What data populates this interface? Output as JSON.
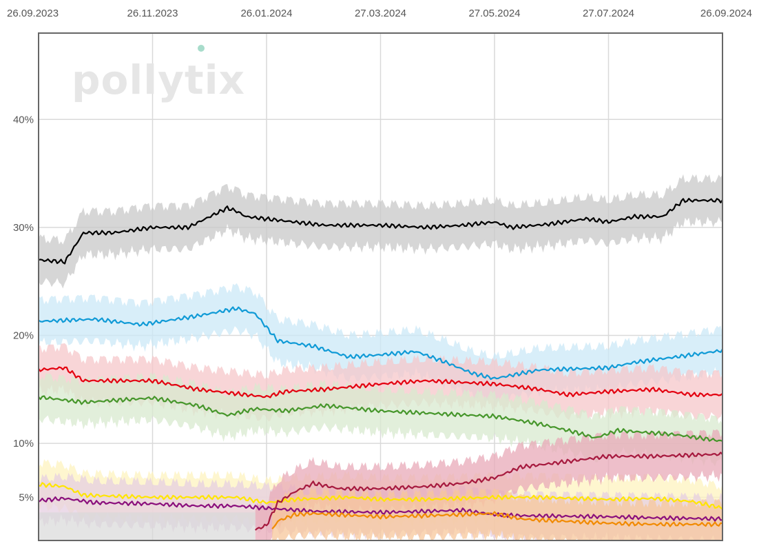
{
  "chart_data": {
    "type": "line",
    "title": "",
    "xlabel": "",
    "ylabel": "",
    "x_ticks": [
      "26.09.2023",
      "26.11.2023",
      "26.01.2024",
      "27.03.2024",
      "27.05.2024",
      "27.07.2024",
      "26.09.2024"
    ],
    "y_ticks": [
      {
        "value": 5,
        "label": "5%"
      },
      {
        "value": 10,
        "label": "10%"
      },
      {
        "value": 20,
        "label": "20%"
      },
      {
        "value": 30,
        "label": "30%"
      },
      {
        "value": 40,
        "label": "40%"
      }
    ],
    "xlim": [
      "2023-09-26",
      "2024-09-26"
    ],
    "ylim": [
      1,
      48
    ],
    "grid": true,
    "watermark": "pollytix",
    "uncertainty_band": true,
    "series": [
      {
        "color": "#000000",
        "band": "#c8c8c8",
        "start": "2023-09-26",
        "end": "2024-09-26",
        "points": [
          [
            "2023-09-26",
            27.0
          ],
          [
            "2023-10-10",
            26.8
          ],
          [
            "2023-10-20",
            29.5
          ],
          [
            "2023-11-05",
            29.5
          ],
          [
            "2023-11-26",
            30.0
          ],
          [
            "2023-12-15",
            30.0
          ],
          [
            "2024-01-05",
            31.8
          ],
          [
            "2024-01-10",
            31.5
          ],
          [
            "2024-01-15",
            31.0
          ],
          [
            "2024-02-10",
            30.5
          ],
          [
            "2024-02-26",
            30.2
          ],
          [
            "2024-03-27",
            30.2
          ],
          [
            "2024-04-20",
            30.0
          ],
          [
            "2024-05-10",
            30.2
          ],
          [
            "2024-05-27",
            30.5
          ],
          [
            "2024-06-05",
            30.0
          ],
          [
            "2024-06-25",
            30.3
          ],
          [
            "2024-07-15",
            30.8
          ],
          [
            "2024-07-27",
            30.5
          ],
          [
            "2024-08-10",
            31.0
          ],
          [
            "2024-08-25",
            31.0
          ],
          [
            "2024-09-05",
            32.5
          ],
          [
            "2024-09-26",
            32.5
          ]
        ]
      },
      {
        "color": "#0f9ad6",
        "band": "#cbe8f7",
        "start": "2023-09-26",
        "end": "2024-09-26",
        "points": [
          [
            "2023-09-26",
            21.3
          ],
          [
            "2023-10-26",
            21.5
          ],
          [
            "2023-11-20",
            21.0
          ],
          [
            "2023-12-20",
            21.8
          ],
          [
            "2024-01-10",
            22.5
          ],
          [
            "2024-01-20",
            22.0
          ],
          [
            "2024-02-01",
            19.5
          ],
          [
            "2024-02-20",
            19.0
          ],
          [
            "2024-03-10",
            18.0
          ],
          [
            "2024-03-27",
            18.2
          ],
          [
            "2024-04-15",
            18.5
          ],
          [
            "2024-05-01",
            17.5
          ],
          [
            "2024-05-15",
            16.5
          ],
          [
            "2024-05-27",
            16.0
          ],
          [
            "2024-06-20",
            16.8
          ],
          [
            "2024-07-27",
            17.0
          ],
          [
            "2024-08-10",
            17.5
          ],
          [
            "2024-09-01",
            18.0
          ],
          [
            "2024-09-26",
            18.6
          ]
        ]
      },
      {
        "color": "#e3000f",
        "band": "#f6c7c9",
        "start": "2023-09-26",
        "end": "2024-09-26",
        "points": [
          [
            "2023-09-26",
            16.8
          ],
          [
            "2023-10-10",
            17.0
          ],
          [
            "2023-10-20",
            15.8
          ],
          [
            "2023-11-26",
            15.8
          ],
          [
            "2023-12-20",
            15.0
          ],
          [
            "2024-01-15",
            14.5
          ],
          [
            "2024-01-26",
            14.3
          ],
          [
            "2024-02-05",
            14.8
          ],
          [
            "2024-02-26",
            15.0
          ],
          [
            "2024-03-27",
            15.5
          ],
          [
            "2024-04-20",
            15.8
          ],
          [
            "2024-05-27",
            15.5
          ],
          [
            "2024-06-20",
            15.0
          ],
          [
            "2024-07-05",
            14.5
          ],
          [
            "2024-07-27",
            14.8
          ],
          [
            "2024-08-20",
            15.0
          ],
          [
            "2024-09-10",
            14.5
          ],
          [
            "2024-09-26",
            14.5
          ]
        ]
      },
      {
        "color": "#46962b",
        "band": "#d8e9cf",
        "start": "2023-09-26",
        "end": "2024-09-26",
        "points": [
          [
            "2023-09-26",
            14.3
          ],
          [
            "2023-10-20",
            13.8
          ],
          [
            "2023-11-26",
            14.2
          ],
          [
            "2023-12-20",
            13.5
          ],
          [
            "2024-01-05",
            12.6
          ],
          [
            "2024-01-20",
            13.2
          ],
          [
            "2024-02-05",
            13.0
          ],
          [
            "2024-02-26",
            13.5
          ],
          [
            "2024-03-27",
            13.0
          ],
          [
            "2024-04-20",
            12.8
          ],
          [
            "2024-05-27",
            12.5
          ],
          [
            "2024-06-20",
            11.8
          ],
          [
            "2024-07-10",
            11.0
          ],
          [
            "2024-07-20",
            10.5
          ],
          [
            "2024-08-01",
            11.2
          ],
          [
            "2024-09-01",
            10.8
          ],
          [
            "2024-09-26",
            10.2
          ]
        ]
      },
      {
        "color": "#ffe500",
        "band": "#fdf3bf",
        "start": "2023-09-26",
        "end": "2024-09-26",
        "points": [
          [
            "2023-09-26",
            6.2
          ],
          [
            "2023-10-10",
            6.0
          ],
          [
            "2023-10-20",
            5.2
          ],
          [
            "2023-11-26",
            5.0
          ],
          [
            "2023-12-20",
            5.0
          ],
          [
            "2024-01-10",
            5.0
          ],
          [
            "2024-01-26",
            4.5
          ],
          [
            "2024-02-10",
            4.8
          ],
          [
            "2024-03-10",
            5.0
          ],
          [
            "2024-03-27",
            4.8
          ],
          [
            "2024-04-20",
            4.8
          ],
          [
            "2024-05-27",
            5.0
          ],
          [
            "2024-06-20",
            5.0
          ],
          [
            "2024-07-27",
            4.8
          ],
          [
            "2024-08-20",
            4.9
          ],
          [
            "2024-09-10",
            4.6
          ],
          [
            "2024-09-26",
            4.0
          ]
        ]
      },
      {
        "color": "#8a0f7c",
        "band": "#e5cfe2",
        "start": "2023-09-26",
        "end": "2024-09-26",
        "points": [
          [
            "2023-09-26",
            4.7
          ],
          [
            "2023-10-10",
            4.9
          ],
          [
            "2023-10-26",
            4.5
          ],
          [
            "2023-11-26",
            4.4
          ],
          [
            "2023-12-20",
            4.2
          ],
          [
            "2024-01-10",
            4.2
          ],
          [
            "2024-01-26",
            4.0
          ],
          [
            "2024-02-20",
            3.7
          ],
          [
            "2024-03-27",
            3.6
          ],
          [
            "2024-04-20",
            3.7
          ],
          [
            "2024-05-10",
            3.8
          ],
          [
            "2024-05-27",
            3.4
          ],
          [
            "2024-06-10",
            3.3
          ],
          [
            "2024-07-27",
            3.2
          ],
          [
            "2024-08-20",
            3.1
          ],
          [
            "2024-09-26",
            3.0
          ]
        ]
      },
      {
        "color": "#a6193e",
        "band": "#e8a9b8",
        "start": "2024-01-20",
        "end": "2024-09-26",
        "points": [
          [
            "2024-01-20",
            2.0
          ],
          [
            "2024-01-26",
            2.4
          ],
          [
            "2024-02-01",
            4.5
          ],
          [
            "2024-02-10",
            5.5
          ],
          [
            "2024-02-20",
            6.3
          ],
          [
            "2024-03-05",
            5.8
          ],
          [
            "2024-03-27",
            5.8
          ],
          [
            "2024-04-20",
            6.0
          ],
          [
            "2024-05-10",
            6.3
          ],
          [
            "2024-05-27",
            6.8
          ],
          [
            "2024-06-10",
            7.8
          ],
          [
            "2024-06-20",
            8.0
          ],
          [
            "2024-07-27",
            8.8
          ],
          [
            "2024-08-20",
            8.8
          ],
          [
            "2024-09-26",
            9.0
          ]
        ]
      },
      {
        "color": "#f18a00",
        "band": "#f7c79b",
        "start": "2024-01-29",
        "end": "2024-09-26",
        "points": [
          [
            "2024-01-29",
            2.0
          ],
          [
            "2024-02-01",
            2.8
          ],
          [
            "2024-02-10",
            3.4
          ],
          [
            "2024-02-20",
            3.5
          ],
          [
            "2024-03-27",
            3.2
          ],
          [
            "2024-04-20",
            3.3
          ],
          [
            "2024-05-27",
            3.5
          ],
          [
            "2024-06-10",
            3.0
          ],
          [
            "2024-06-20",
            2.9
          ],
          [
            "2024-07-27",
            2.6
          ],
          [
            "2024-08-20",
            2.5
          ],
          [
            "2024-09-26",
            2.5
          ]
        ]
      }
    ]
  }
}
